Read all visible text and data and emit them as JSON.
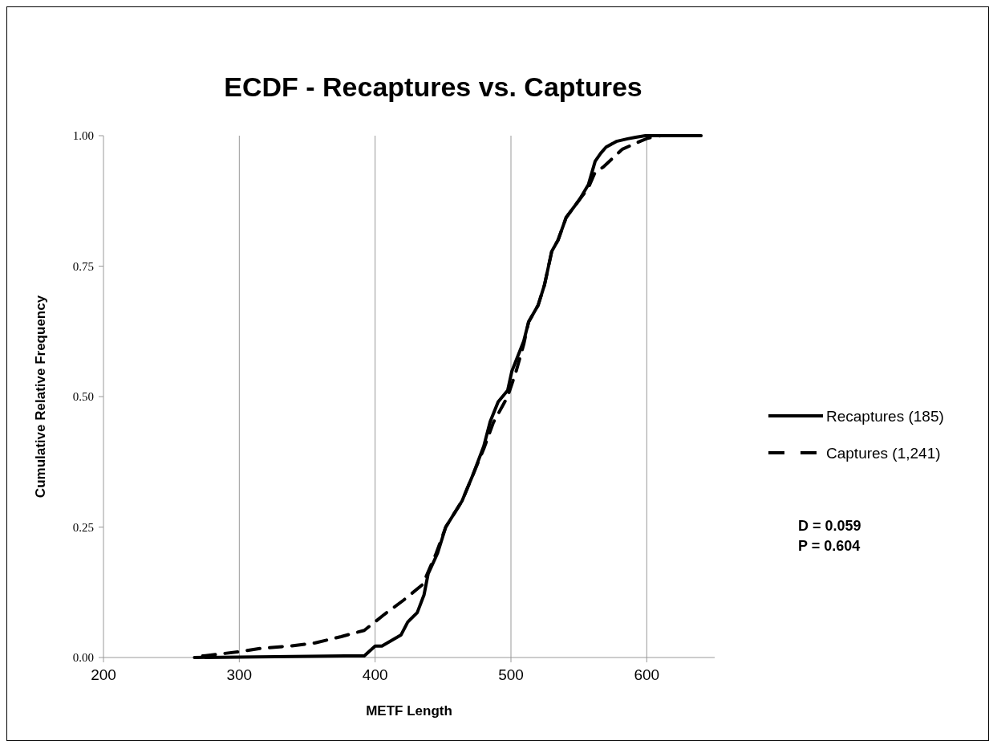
{
  "chart_data": {
    "type": "line",
    "title": "ECDF - Recaptures vs. Captures",
    "xlabel": "METF Length",
    "ylabel": "Cumulative Relative Frequency",
    "xlim": [
      200,
      650
    ],
    "xticks": [
      200,
      300,
      400,
      500,
      600
    ],
    "ylim": [
      0,
      1
    ],
    "yticks": [
      {
        "value": 0,
        "label": "0.00"
      },
      {
        "value": 0.25,
        "label": "0.25"
      },
      {
        "value": 0.5,
        "label": "0.50"
      },
      {
        "value": 0.75,
        "label": "0.75"
      },
      {
        "value": 1,
        "label": "1.00"
      }
    ],
    "grid": "x",
    "legend": "right",
    "annotations": [
      "D = 0.059",
      "P = 0.604"
    ],
    "series": [
      {
        "name": "Recaptures (185)",
        "color": "#000000",
        "line_style": "solid",
        "x": [
          267,
          378,
          392,
          400,
          405,
          419,
          424,
          431,
          436,
          439,
          446,
          452,
          464,
          472,
          480,
          484.7,
          490.6,
          497.6,
          500.6,
          509.4,
          513,
          520,
          524.7,
          530,
          534.7,
          540.6,
          550.6,
          557,
          562,
          566,
          570,
          577.6,
          585.9,
          591.8,
          599,
          640
        ],
        "values": [
          0,
          0.003,
          0.003,
          0.022,
          0.022,
          0.043,
          0.068,
          0.086,
          0.12,
          0.16,
          0.2,
          0.25,
          0.3,
          0.35,
          0.405,
          0.452,
          0.49,
          0.512,
          0.548,
          0.606,
          0.643,
          0.675,
          0.714,
          0.778,
          0.8,
          0.843,
          0.878,
          0.906,
          0.951,
          0.966,
          0.978,
          0.989,
          0.994,
          0.997,
          1,
          1
        ]
      },
      {
        "name": "Captures (1,241)",
        "color": "#000000",
        "line_style": "dashed",
        "x": [
          273,
          300,
          317,
          338,
          356,
          375,
          392,
          407,
          421,
          435,
          445,
          452,
          464,
          472,
          480,
          487,
          497.6,
          504,
          509.4,
          513,
          520,
          524.7,
          530,
          534.7,
          540.6,
          550.6,
          557,
          562,
          568,
          582,
          595,
          600.6,
          610,
          640
        ],
        "values": [
          0.003,
          0.011,
          0.018,
          0.022,
          0.028,
          0.04,
          0.052,
          0.083,
          0.11,
          0.14,
          0.2,
          0.25,
          0.3,
          0.35,
          0.4,
          0.45,
          0.5,
          0.55,
          0.6,
          0.643,
          0.675,
          0.714,
          0.778,
          0.8,
          0.843,
          0.878,
          0.9,
          0.93,
          0.94,
          0.974,
          0.989,
          0.995,
          1,
          1
        ]
      }
    ]
  }
}
